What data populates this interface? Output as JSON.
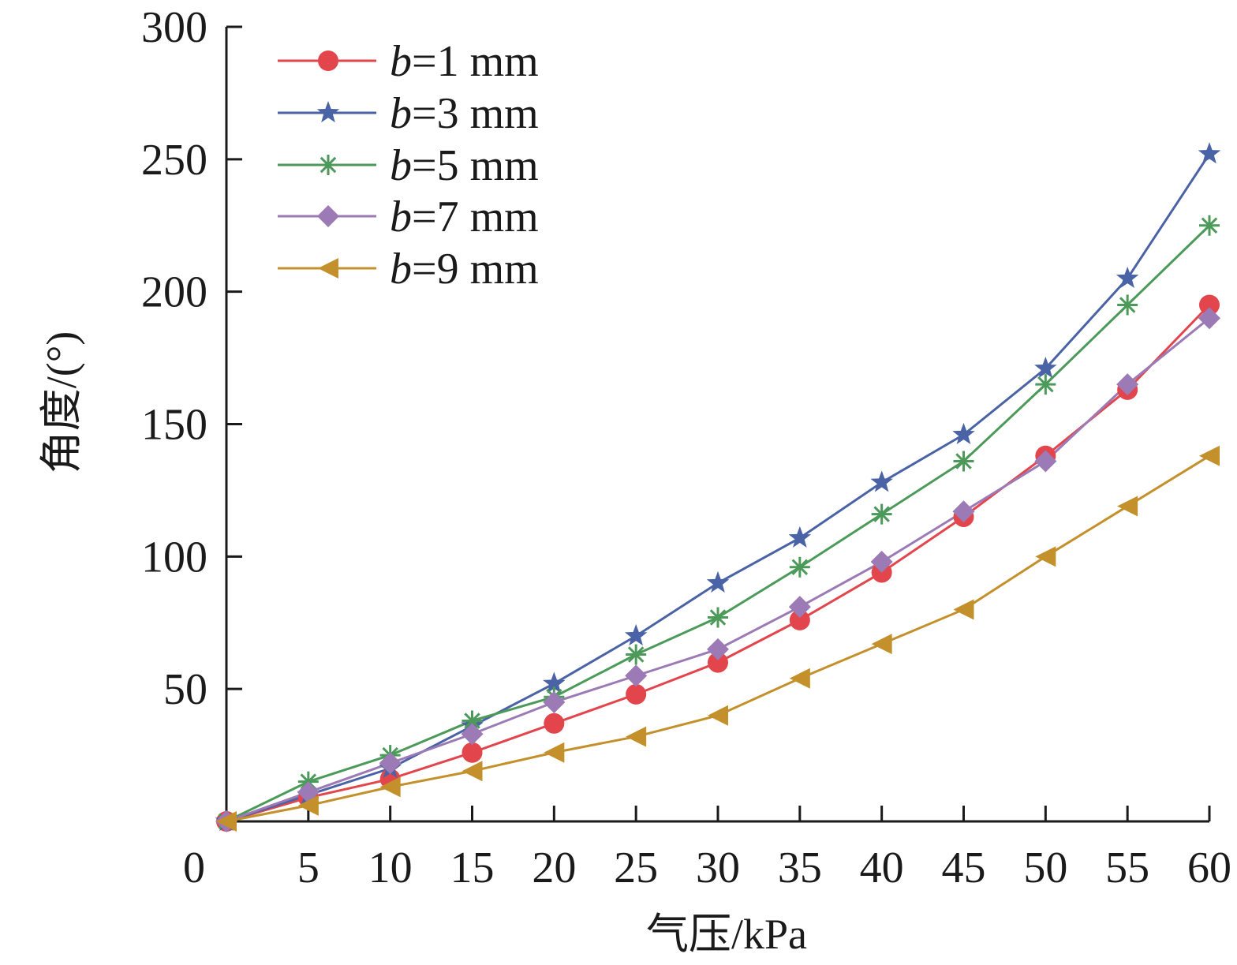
{
  "chart_data": {
    "type": "line",
    "xlabel": "气压/kPa",
    "ylabel": "角度/(°)",
    "xlim": [
      0,
      60
    ],
    "ylim": [
      0,
      300
    ],
    "x_ticks": [
      "0",
      "5",
      "10",
      "15",
      "20",
      "25",
      "30",
      "35",
      "40",
      "45",
      "50",
      "55",
      "60"
    ],
    "y_ticks": [
      "50",
      "100",
      "150",
      "200",
      "250",
      "300"
    ],
    "grid": false,
    "legend_position": "top-left",
    "x": [
      0,
      5,
      10,
      15,
      20,
      25,
      30,
      35,
      40,
      45,
      50,
      55,
      60
    ],
    "series": [
      {
        "name": "b=1 mm",
        "name_var": "b",
        "name_rest": "=1 mm",
        "color": "#e2454b",
        "marker": "circle",
        "values": [
          0,
          9,
          16,
          26,
          37,
          48,
          60,
          76,
          94,
          115,
          138,
          163,
          195
        ]
      },
      {
        "name": "b=3 mm",
        "name_var": "b",
        "name_rest": "=3 mm",
        "color": "#4a62a6",
        "marker": "star",
        "values": [
          0,
          10,
          20,
          36,
          52,
          70,
          90,
          107,
          128,
          146,
          171,
          205,
          252
        ]
      },
      {
        "name": "b=5 mm",
        "name_var": "b",
        "name_rest": "=5 mm",
        "color": "#4c9a5a",
        "marker": "asterisk",
        "values": [
          0,
          15,
          25,
          38,
          47,
          63,
          77,
          96,
          116,
          136,
          165,
          195,
          225
        ]
      },
      {
        "name": "b=7 mm",
        "name_var": "b",
        "name_rest": "=7 mm",
        "color": "#9b7ab5",
        "marker": "diamond",
        "values": [
          0,
          11,
          22,
          33,
          45,
          55,
          65,
          81,
          98,
          117,
          136,
          165,
          190
        ]
      },
      {
        "name": "b=9 mm",
        "name_var": "b",
        "name_rest": "=9 mm",
        "color": "#c4902b",
        "marker": "triangle-left",
        "values": [
          0,
          6,
          13,
          19,
          26,
          32,
          40,
          54,
          67,
          80,
          100,
          119,
          138
        ]
      }
    ]
  }
}
